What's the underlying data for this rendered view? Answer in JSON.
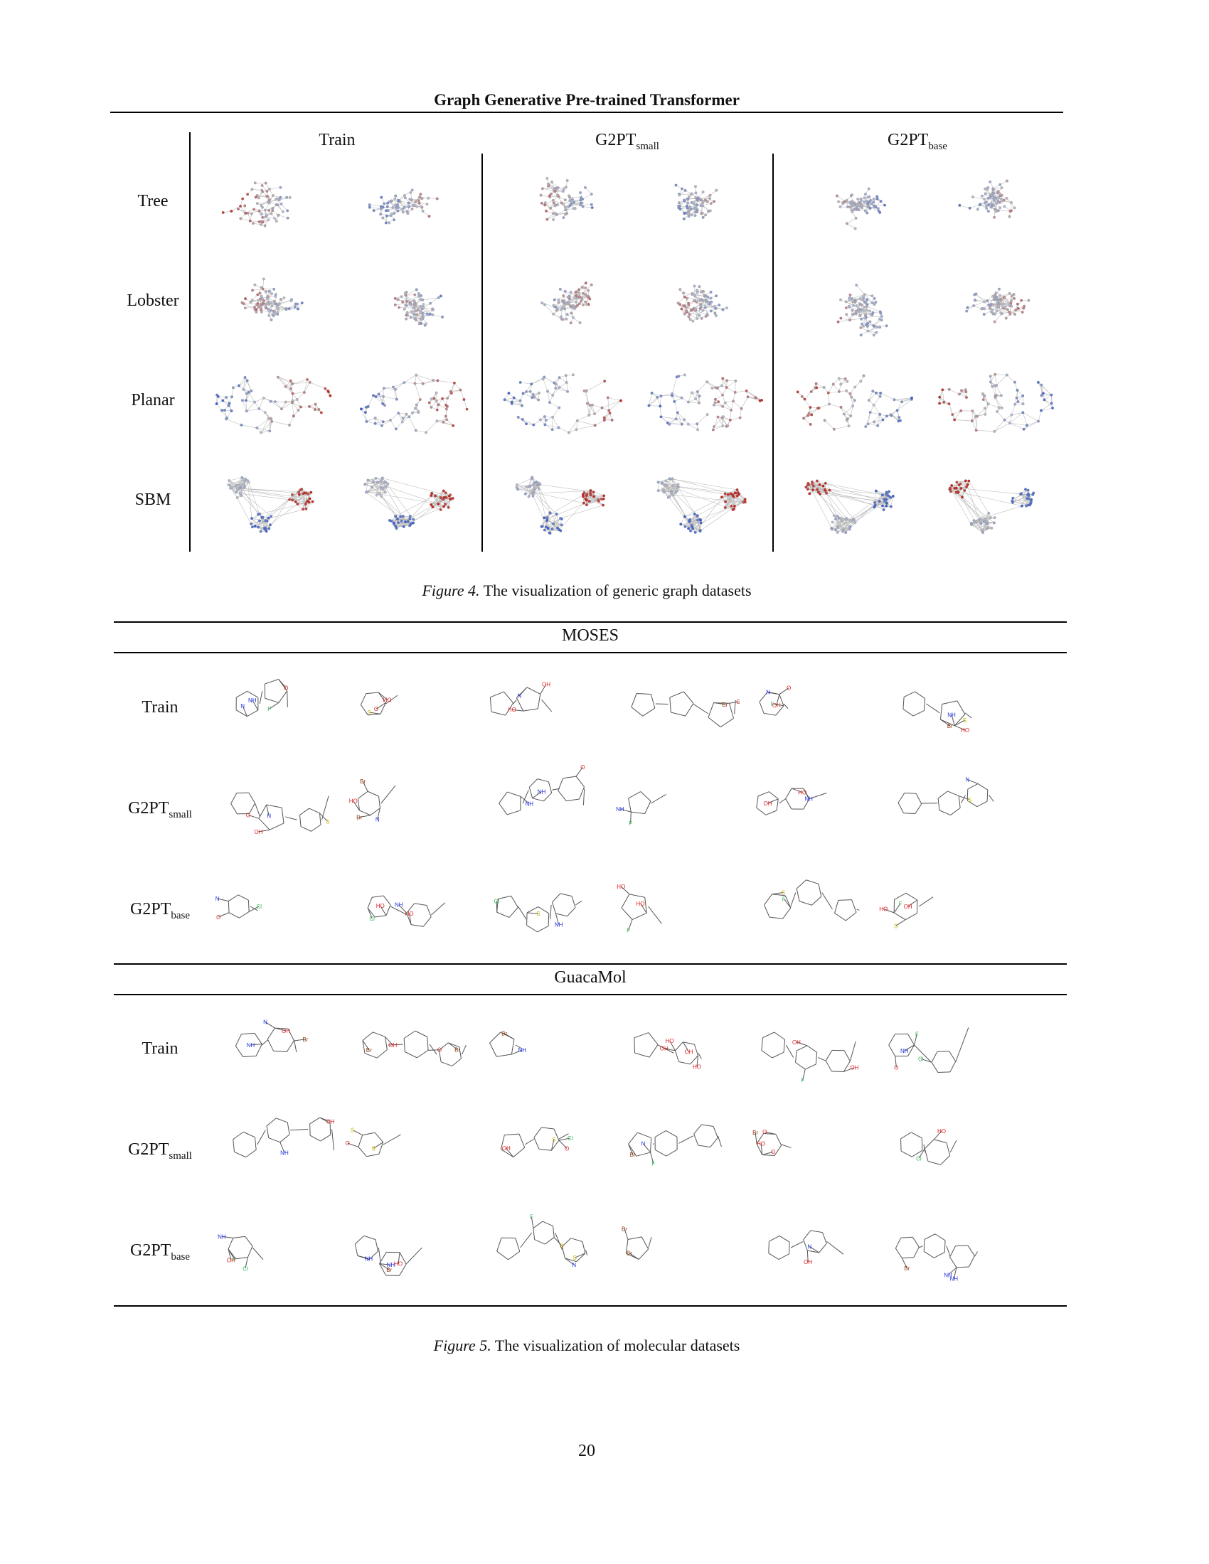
{
  "running_title": "Graph Generative Pre-trained Transformer",
  "fig4": {
    "columns": [
      {
        "main": "Train",
        "sub": ""
      },
      {
        "main": "G2PT",
        "sub": "small"
      },
      {
        "main": "G2PT",
        "sub": "base"
      }
    ],
    "rows": [
      "Tree",
      "Lobster",
      "Planar",
      "SBM"
    ],
    "caption_label": "Figure 4.",
    "caption_text": "The visualization of generic graph datasets"
  },
  "fig5": {
    "sections": [
      "MOSES",
      "GuacaMol"
    ],
    "rows": [
      {
        "main": "Train",
        "sub": ""
      },
      {
        "main": "G2PT",
        "sub": "small"
      },
      {
        "main": "G2PT",
        "sub": "base"
      }
    ],
    "caption_label": "Figure 5.",
    "caption_text": "The visualization of molecular datasets"
  },
  "atoms": {
    "n": "N",
    "o": "O",
    "s": "S",
    "f": "F",
    "cl": "Cl",
    "br": "Br",
    "nh": "NH",
    "oh": "OH",
    "nh2": "NH",
    "ho": "HO"
  },
  "colors": {
    "red": "#c0281f",
    "blue": "#3b5fc9",
    "grey": "#b8bcc8",
    "atom_n": "#2233dd",
    "atom_o": "#dd2222",
    "atom_s": "#c8b400",
    "atom_f": "#33bb55"
  },
  "page_number": "20"
}
